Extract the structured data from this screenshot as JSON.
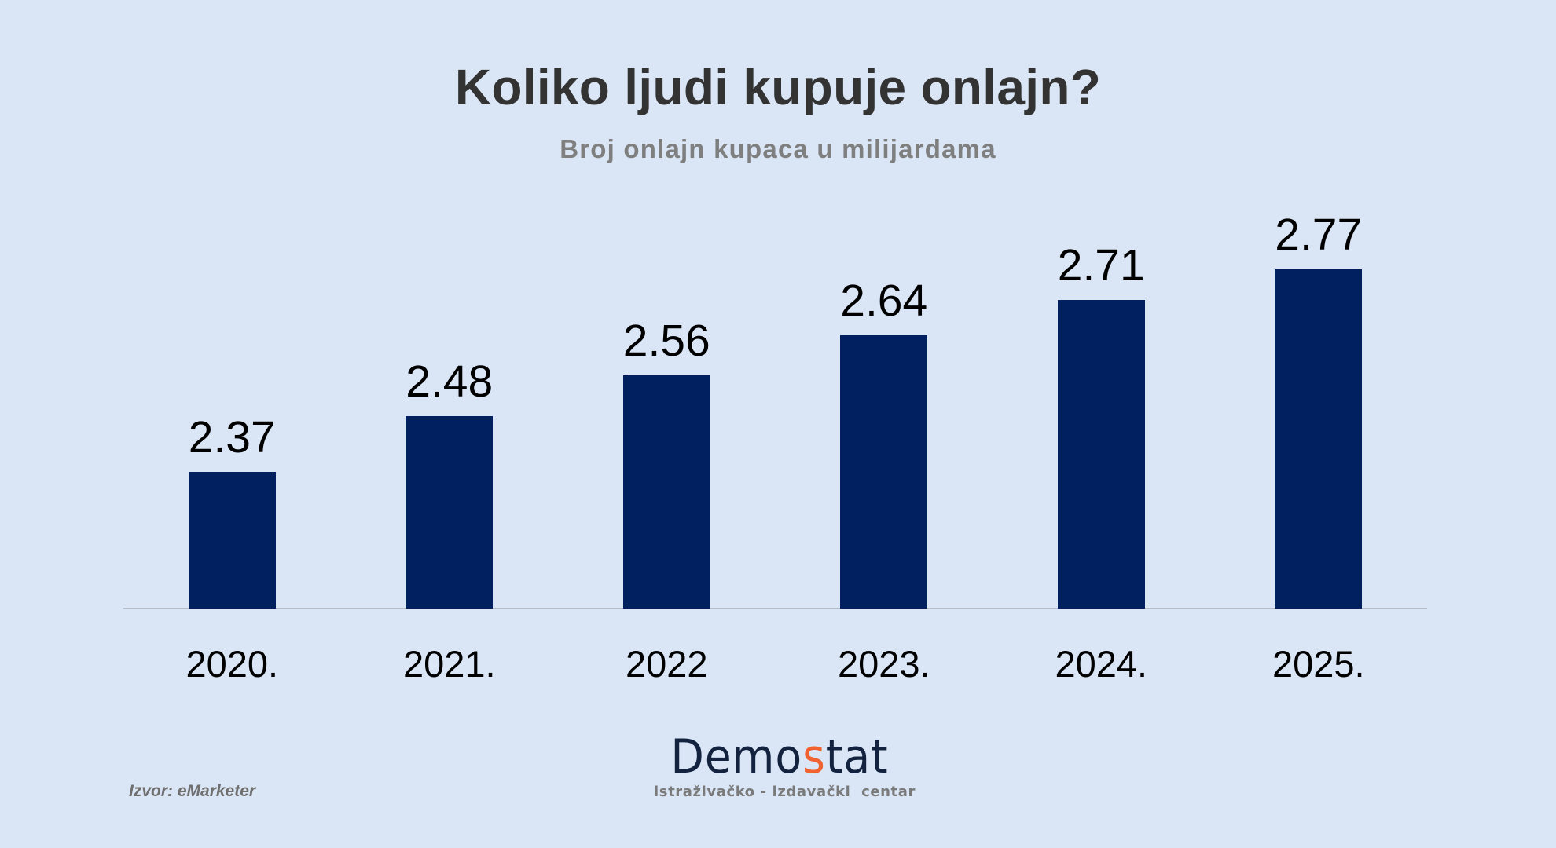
{
  "header": {
    "title": "Koliko ljudi kupuje onlajn?",
    "subtitle": "Broj onlajn kupaca u milijardama"
  },
  "footer": {
    "source": "Izvor: eMarketer",
    "logo": {
      "word_part1": "Demo",
      "word_accent": "s",
      "word_part2": "tat",
      "tagline": "istraživačko - izdavački  centar"
    }
  },
  "colors": {
    "background": "#dae6f5",
    "bar": "#002060",
    "axis_line": "#b6bdc9",
    "title": "#333333",
    "subtitle": "#7f7f7f",
    "logo_primary": "#13223f",
    "logo_accent": "#f26130"
  },
  "chart_data": {
    "type": "bar",
    "title": "Koliko ljudi kupuje onlajn?",
    "subtitle": "Broj onlajn kupaca u milijardama",
    "xlabel": "",
    "ylabel": "",
    "categories": [
      "2020.",
      "2021.",
      "2022",
      "2023.",
      "2024.",
      "2025."
    ],
    "values": [
      2.37,
      2.48,
      2.56,
      2.64,
      2.71,
      2.77
    ],
    "value_labels": [
      "2.37",
      "2.48",
      "2.56",
      "2.64",
      "2.71",
      "2.77"
    ],
    "ylim": [
      2.1,
      2.9
    ],
    "y_axis_visible": false,
    "grid": false,
    "legend": null,
    "data_labels": true
  }
}
